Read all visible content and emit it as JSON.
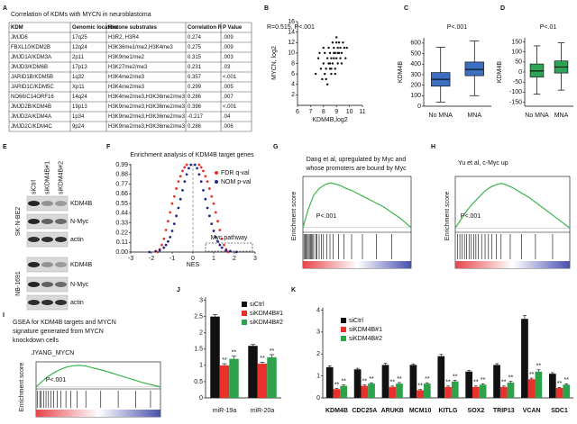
{
  "panel_letters": [
    "A",
    "B",
    "C",
    "D",
    "E",
    "F",
    "G",
    "H",
    "I",
    "J",
    "K"
  ],
  "table": {
    "title": "Correlation of KDMs with MYCN in neuroblastoma",
    "header": [
      "KDM",
      "Genomic location",
      "Histone substrates",
      "Correlation R",
      "P Value"
    ],
    "rows": [
      [
        "JMJD6",
        "17q25",
        "H3R2, H3R4",
        "0.274",
        ".009"
      ],
      [
        "FBXL10/KDM2B",
        "12q24",
        "H3K36me1/me2,H3K4me3",
        "0.275",
        ".009"
      ],
      [
        "JMJD1A/KDM3A",
        "2p11",
        "H3K9me1/me2",
        "0.315",
        ".003"
      ],
      [
        "JMJD3/KDM6B",
        "17p13",
        "H3K27me2/me3",
        "0.231",
        ".03"
      ],
      [
        "JARID1B/KDM5B",
        "1q32",
        "H3K4me2/me3",
        "0.357",
        "<.001"
      ],
      [
        "JARID1C/KDM5C",
        "Xp11",
        "H3K4me2/me3",
        "0.299",
        ".005"
      ],
      [
        "NO66/C14ORF16",
        "14q24",
        "H3K4me2/me3,H3K36me2/me3",
        "0.286",
        ".007"
      ],
      [
        "JMJD2B/KDM4B",
        "19p13",
        "H3K9me2/me3,H3K36me2/me3",
        "0.396",
        "<.001"
      ],
      [
        "JMJD2A/KDM4A",
        "1p34",
        "H3K9me2/me3,H3K36me2/me3",
        "-0.217",
        ".04"
      ],
      [
        "JMJD2C/KDM4C",
        "9p24",
        "H3K9me2/me3,H3K36me2/me3",
        "0.286",
        ".006"
      ]
    ]
  },
  "blot": {
    "lanes": [
      "siCtrl",
      "siKDM4B#1",
      "siKDM4B#2"
    ],
    "cell_lines": [
      {
        "name": "SK-N-BE2",
        "bands": [
          "KDM4B",
          "N-Myc",
          "actin"
        ]
      },
      {
        "name": "NB-1691",
        "bands": [
          "KDM4B",
          "N-Myc",
          "actin"
        ]
      }
    ]
  },
  "chart_data": [
    {
      "type": "scatter",
      "annotation": "R=0.515, P<.001",
      "xlabel": "KDM4B,log2",
      "ylabel": "MYCN, log2",
      "xlim": [
        6,
        11
      ],
      "xticks": [
        6,
        7,
        8,
        9,
        10,
        11
      ],
      "ylim": [
        0,
        16
      ],
      "yticks": [
        2,
        4,
        6,
        8,
        10,
        12,
        14,
        16
      ],
      "color": "#111111",
      "x": [
        7.4,
        7.6,
        7.8,
        7.9,
        8.0,
        8.1,
        8.1,
        8.2,
        8.3,
        8.3,
        8.4,
        8.4,
        8.5,
        8.5,
        8.6,
        8.6,
        8.7,
        8.7,
        8.8,
        8.8,
        8.9,
        8.9,
        9.0,
        9.0,
        9.1,
        9.1,
        9.2,
        9.2,
        9.3,
        9.3,
        9.4,
        9.5,
        9.6,
        9.7,
        8.0,
        8.2,
        8.5,
        8.8,
        9.0,
        9.4,
        7.7,
        8.9,
        9.1,
        8.6,
        9.8
      ],
      "values": [
        6,
        9,
        7,
        5,
        8,
        10,
        6,
        7,
        9,
        4,
        8,
        11,
        7,
        10,
        6,
        9,
        8,
        12,
        9,
        11,
        7,
        10,
        9,
        13,
        8,
        11,
        10,
        12,
        9,
        11,
        10,
        12,
        11,
        9,
        11,
        5,
        8,
        10,
        12,
        8,
        10,
        6,
        10,
        7,
        11
      ]
    },
    {
      "type": "box",
      "annotation": "P<.001",
      "ylabel": "KDM4B",
      "categories": [
        "No MNA",
        "MNA"
      ],
      "color": "#3c6fbf",
      "ylim": [
        0,
        650
      ],
      "yticks": [
        0,
        100,
        200,
        300,
        400,
        500,
        600
      ],
      "boxes": [
        {
          "min": 40,
          "q1": 190,
          "median": 255,
          "q3": 320,
          "max": 560
        },
        {
          "min": 100,
          "q1": 290,
          "median": 350,
          "q3": 420,
          "max": 620
        }
      ]
    },
    {
      "type": "box",
      "annotation": "P<.01",
      "ylabel": "KDM4B",
      "categories": [
        "No MNA",
        "MNA"
      ],
      "color": "#2fa356",
      "ylim": [
        -170,
        170
      ],
      "yticks": [
        -150,
        -100,
        -50,
        0,
        50,
        100,
        150
      ],
      "boxes": [
        {
          "min": -110,
          "q1": -25,
          "median": 5,
          "q3": 40,
          "max": 130
        },
        {
          "min": -90,
          "q1": -5,
          "median": 25,
          "q3": 55,
          "max": 145
        }
      ]
    },
    {
      "type": "scatter",
      "title": "Enrichment analysis of KDM4B target genes",
      "xlabel": "NES",
      "annotation": "Myc pathway",
      "xlim": [
        -3,
        3
      ],
      "xticks": [
        -3,
        -2,
        -1,
        0,
        1,
        2,
        3
      ],
      "ylim": [
        0,
        1
      ],
      "yticks": [
        {
          "value": 0,
          "label": "0.00"
        },
        0.11,
        0.22,
        0.33,
        0.44,
        0.55,
        0.66,
        0.77,
        0.88,
        0.99
      ],
      "series": [
        {
          "name": "FDR q-val",
          "color": "#e8312a",
          "x": [
            -1.7,
            -1.6,
            -1.5,
            -1.4,
            -1.3,
            -1.2,
            -1.1,
            -1.0,
            -0.9,
            -0.8,
            -0.7,
            -0.6,
            -0.5,
            -0.4,
            -0.3,
            0.3,
            0.4,
            0.5,
            0.6,
            0.7,
            0.8,
            0.9,
            1.0,
            1.1,
            1.2,
            1.3,
            1.4,
            1.5,
            1.6,
            1.7
          ],
          "values": [
            0.0,
            0.03,
            0.08,
            0.15,
            0.25,
            0.35,
            0.45,
            0.55,
            0.63,
            0.72,
            0.8,
            0.86,
            0.92,
            0.96,
            0.99,
            0.99,
            0.96,
            0.92,
            0.86,
            0.8,
            0.72,
            0.63,
            0.55,
            0.45,
            0.35,
            0.25,
            0.15,
            0.08,
            0.03,
            0.0
          ]
        },
        {
          "name": "NOM p-val",
          "color": "#1f2a8a",
          "x": [
            -2.1,
            -1.8,
            -1.6,
            -1.4,
            -1.3,
            -1.2,
            -1.1,
            -1.0,
            -0.9,
            -0.8,
            -0.7,
            -0.6,
            -0.5,
            -0.4,
            -0.3,
            -0.2,
            -0.1,
            0.1,
            0.2,
            0.3,
            0.4,
            0.5,
            0.6,
            0.7,
            0.8,
            0.9,
            1.0,
            1.1,
            1.2,
            1.3,
            1.4,
            1.6,
            1.8,
            2.1
          ],
          "values": [
            0,
            0.01,
            0.02,
            0.05,
            0.08,
            0.12,
            0.17,
            0.24,
            0.32,
            0.41,
            0.5,
            0.6,
            0.7,
            0.8,
            0.88,
            0.95,
            0.99,
            0.99,
            0.95,
            0.88,
            0.8,
            0.7,
            0.6,
            0.5,
            0.41,
            0.32,
            0.24,
            0.17,
            0.12,
            0.08,
            0.05,
            0.02,
            0.01,
            0
          ]
        }
      ]
    },
    {
      "type": "gsea",
      "title": [
        "Dang et al, upregulated by Myc and",
        "whose promoters are bound by Myc"
      ],
      "ylabel": "Enrichment score",
      "annotation": "P<.001",
      "color": "#3bb54a",
      "xlim": [
        0,
        100
      ],
      "ylim": [
        -0.05,
        0.55
      ],
      "x": [
        0,
        5,
        10,
        15,
        20,
        25,
        30,
        35,
        40,
        45,
        50,
        55,
        60,
        65,
        70,
        75,
        80,
        85,
        90,
        95,
        100
      ],
      "values": [
        0,
        0.2,
        0.35,
        0.42,
        0.46,
        0.48,
        0.47,
        0.45,
        0.42,
        0.4,
        0.37,
        0.34,
        0.31,
        0.28,
        0.25,
        0.22,
        0.18,
        0.14,
        0.1,
        0.05,
        0
      ],
      "hits": [
        1,
        2,
        3,
        4,
        5,
        6,
        7,
        8,
        9,
        10,
        12,
        13,
        15,
        17,
        19,
        22,
        25,
        28,
        33,
        38,
        45,
        55,
        68,
        82
      ]
    },
    {
      "type": "gsea",
      "title": [
        "Yu et al, c-Myc up"
      ],
      "ylabel": "Enrichment score",
      "annotation": "P<.001",
      "color": "#3bb54a",
      "xlim": [
        0,
        100
      ],
      "ylim": [
        -0.05,
        0.6
      ],
      "x": [
        0,
        5,
        10,
        15,
        20,
        25,
        30,
        35,
        40,
        45,
        50,
        55,
        60,
        65,
        70,
        75,
        80,
        85,
        90,
        95,
        100
      ],
      "values": [
        0,
        0.1,
        0.2,
        0.28,
        0.35,
        0.42,
        0.47,
        0.5,
        0.52,
        0.5,
        0.47,
        0.43,
        0.39,
        0.35,
        0.3,
        0.25,
        0.2,
        0.15,
        0.1,
        0.05,
        0
      ],
      "hits": [
        2,
        4,
        6,
        8,
        10,
        12,
        14,
        16,
        18,
        20,
        23,
        26,
        29,
        32,
        36,
        40,
        48,
        58,
        70,
        85
      ]
    },
    {
      "type": "gsea",
      "title": [
        "GSEA for KDM4B targets and MYCN",
        "signature generated from MYCN",
        "knockdown cells"
      ],
      "subtitle": "JYANG_MYCN",
      "ylabel": "Enrichment score",
      "annotation": "P<.001",
      "color": "#3bb54a",
      "xlim": [
        0,
        100
      ],
      "ylim": [
        -0.05,
        0.65
      ],
      "x": [
        0,
        5,
        10,
        15,
        20,
        25,
        30,
        35,
        40,
        45,
        50,
        55,
        60,
        65,
        70,
        75,
        80,
        85,
        90,
        95,
        100
      ],
      "values": [
        0,
        0.15,
        0.28,
        0.38,
        0.46,
        0.52,
        0.55,
        0.56,
        0.54,
        0.5,
        0.46,
        0.42,
        0.37,
        0.32,
        0.27,
        0.22,
        0.17,
        0.12,
        0.08,
        0.04,
        0
      ],
      "hits": [
        1,
        3,
        4,
        6,
        8,
        10,
        12,
        14,
        17,
        20,
        24,
        28,
        33,
        40,
        52,
        66,
        80,
        92
      ]
    },
    {
      "type": "bar",
      "categories": [
        "miR-19a",
        "miR-20a"
      ],
      "ylim": [
        0,
        3.1
      ],
      "yticks": [
        0,
        0.5,
        1,
        1.5,
        2,
        2.5,
        3
      ],
      "series": [
        {
          "name": "siCtrl",
          "color": "#111111",
          "values": [
            2.5,
            1.6
          ],
          "errors": [
            0.06,
            0.04
          ]
        },
        {
          "name": "siKDM4B#1",
          "color": "#e8312a",
          "values": [
            1.0,
            1.05
          ],
          "errors": [
            0.05,
            0.05
          ],
          "annotations": [
            "**",
            "**"
          ]
        },
        {
          "name": "siKDM4B#2",
          "color": "#2ea24a",
          "values": [
            1.2,
            1.25
          ],
          "errors": [
            0.08,
            0.08
          ],
          "annotations": [
            "**",
            "**"
          ]
        }
      ]
    },
    {
      "type": "bar",
      "categories": [
        "KDM4B",
        "CDC25A",
        "ARUKB",
        "MCM10",
        "KITLG",
        "SOX2",
        "TRIP13",
        "VCAN",
        "SDC1"
      ],
      "ylim": [
        0,
        4.1
      ],
      "yticks": [
        0,
        1,
        2,
        3,
        4
      ],
      "series": [
        {
          "name": "siCtrl",
          "color": "#111111",
          "values": [
            1.4,
            1.3,
            1.5,
            1.5,
            1.9,
            1.2,
            1.5,
            3.6,
            1.1
          ],
          "errors": [
            0.06,
            0.05,
            0.07,
            0.05,
            0.08,
            0.05,
            0.06,
            0.15,
            0.05
          ]
        },
        {
          "name": "siKDM4B#1",
          "color": "#e8312a",
          "values": [
            0.4,
            0.55,
            0.5,
            0.35,
            0.5,
            0.5,
            0.5,
            0.85,
            0.45
          ],
          "errors": [
            0.03,
            0.04,
            0.04,
            0.03,
            0.04,
            0.04,
            0.04,
            0.05,
            0.03
          ],
          "annotations": [
            "**",
            "**",
            "**",
            "**",
            "**",
            "**",
            "**",
            "**",
            "**"
          ]
        },
        {
          "name": "siKDM4B#2",
          "color": "#2ea24a",
          "values": [
            0.55,
            0.65,
            0.65,
            0.65,
            0.75,
            0.6,
            0.7,
            1.2,
            0.6
          ],
          "errors": [
            0.04,
            0.04,
            0.05,
            0.04,
            0.05,
            0.04,
            0.05,
            0.08,
            0.04
          ],
          "annotations": [
            "**",
            "**",
            "**",
            "**",
            "**",
            "**",
            "**",
            "**",
            "**"
          ]
        }
      ]
    }
  ]
}
